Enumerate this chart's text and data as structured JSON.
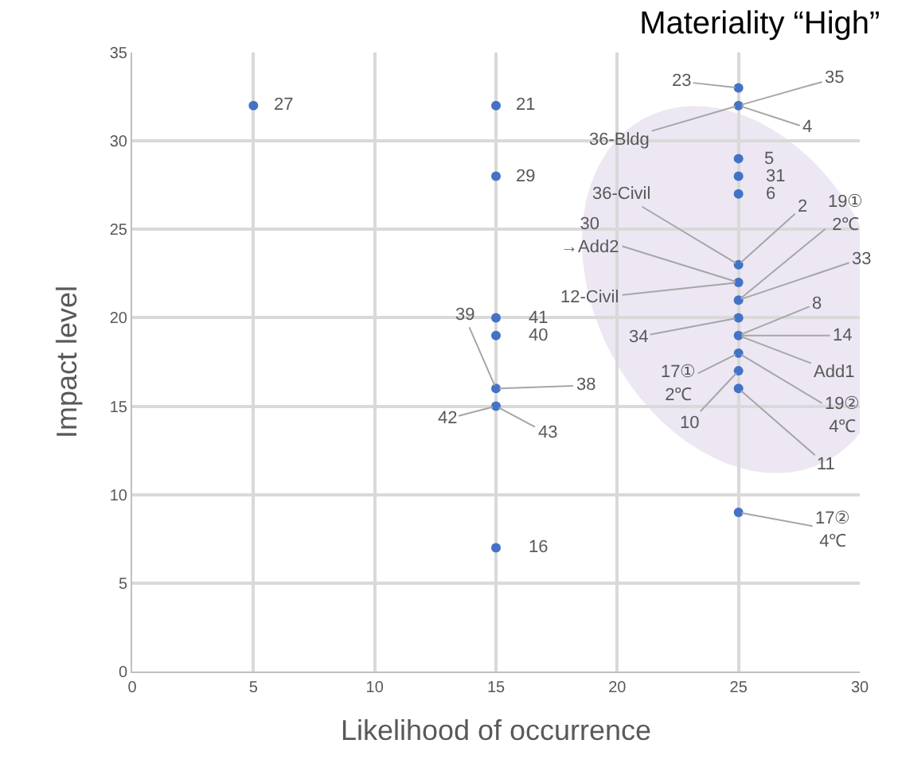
{
  "chart_data": {
    "type": "scatter",
    "title": "Materiality “High”",
    "xlabel": "Likelihood of occurrence",
    "ylabel": "Impact level",
    "x": [
      5,
      15,
      15,
      15,
      15,
      15,
      15,
      15,
      25,
      25,
      25,
      25,
      25,
      25,
      25,
      25,
      25,
      25,
      25,
      25,
      25,
      25
    ],
    "values": [
      32,
      32,
      28,
      20,
      19,
      16,
      15,
      7,
      33,
      32,
      29,
      28,
      27,
      23,
      22,
      21,
      20,
      19,
      18,
      17,
      16,
      9
    ],
    "color": "#4472c4",
    "marker": "circle",
    "xlim": [
      0,
      30
    ],
    "xticks": [
      0,
      5,
      10,
      15,
      20,
      25,
      30
    ],
    "ylim": [
      0,
      35
    ],
    "yticks": [
      0,
      5,
      10,
      15,
      20,
      25,
      30,
      35
    ],
    "grid": true,
    "annotations": [
      {
        "text": "27",
        "x": 5,
        "y": 32
      },
      {
        "text": "21",
        "x": 15,
        "y": 32
      },
      {
        "text": "29",
        "x": 15,
        "y": 28
      },
      {
        "text": "41",
        "x": 15,
        "y": 20
      },
      {
        "text": "40",
        "x": 15,
        "y": 19
      },
      {
        "text": "39",
        "x": 15,
        "y": 16
      },
      {
        "text": "38",
        "x": 15,
        "y": 16
      },
      {
        "text": "42",
        "x": 15,
        "y": 15
      },
      {
        "text": "43",
        "x": 15,
        "y": 15
      },
      {
        "text": "16",
        "x": 15,
        "y": 7
      },
      {
        "text": "23",
        "x": 25,
        "y": 33
      },
      {
        "text": "35",
        "x": 25,
        "y": 32
      },
      {
        "text": "4",
        "x": 25,
        "y": 32
      },
      {
        "text": "36-Bldg",
        "x": 25,
        "y": 32
      },
      {
        "text": "5",
        "x": 25,
        "y": 29
      },
      {
        "text": "31",
        "x": 25,
        "y": 28
      },
      {
        "text": "6",
        "x": 25,
        "y": 27
      },
      {
        "text": "36-Civil",
        "x": 25,
        "y": 23
      },
      {
        "text": "2",
        "x": 25,
        "y": 23
      },
      {
        "text": "30\n→Add2",
        "x": 25,
        "y": 22
      },
      {
        "text": "12-Civil",
        "x": 25,
        "y": 22
      },
      {
        "text": "19①\n2℃",
        "x": 25,
        "y": 21
      },
      {
        "text": "33",
        "x": 25,
        "y": 21
      },
      {
        "text": "34",
        "x": 25,
        "y": 20
      },
      {
        "text": "8",
        "x": 25,
        "y": 19
      },
      {
        "text": "14",
        "x": 25,
        "y": 19
      },
      {
        "text": "Add1",
        "x": 25,
        "y": 19
      },
      {
        "text": "17①\n2℃",
        "x": 25,
        "y": 18
      },
      {
        "text": "19②\n4℃",
        "x": 25,
        "y": 18
      },
      {
        "text": "10",
        "x": 25,
        "y": 17
      },
      {
        "text": "11",
        "x": 25,
        "y": 16
      },
      {
        "text": "17②\n4℃",
        "x": 25,
        "y": 9
      }
    ]
  }
}
